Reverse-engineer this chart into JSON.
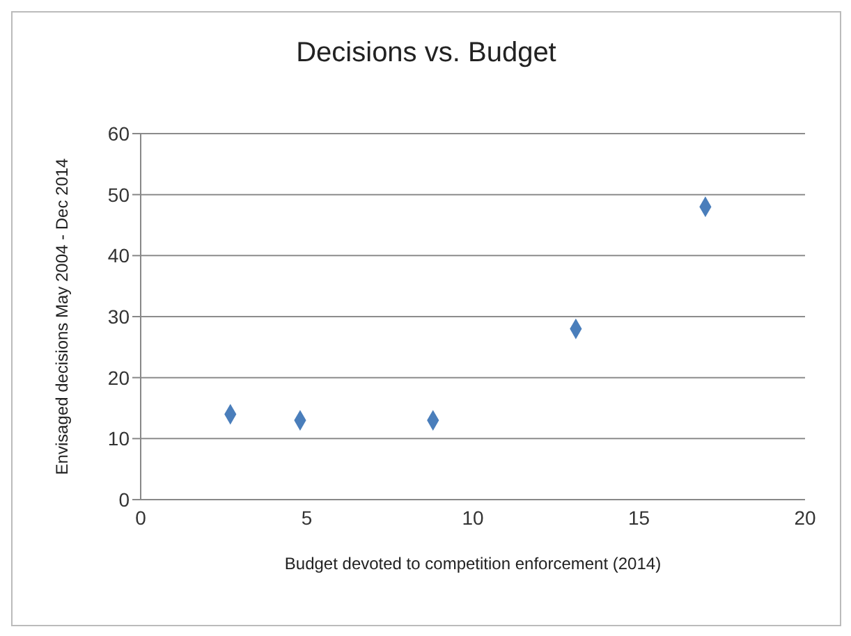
{
  "chart_data": {
    "type": "scatter",
    "title": "Decisions vs. Budget",
    "xlabel": "Budget devoted to competition  enforcement (2014)",
    "ylabel": "Envisaged decisions May 2004 - Dec 2014",
    "x": [
      2.7,
      4.8,
      8.8,
      13.1,
      17
    ],
    "series": [
      {
        "color": "#4a7ebb",
        "values": [
          14,
          13,
          13,
          28,
          48
        ]
      }
    ],
    "xlim": [
      0,
      20
    ],
    "xticks": [
      0,
      5,
      10,
      15,
      20
    ],
    "ylim": [
      0,
      60
    ],
    "yticks": [
      0,
      10,
      20,
      30,
      40,
      50,
      60
    ],
    "grid": "y",
    "marker": "diamond",
    "legend": false
  }
}
